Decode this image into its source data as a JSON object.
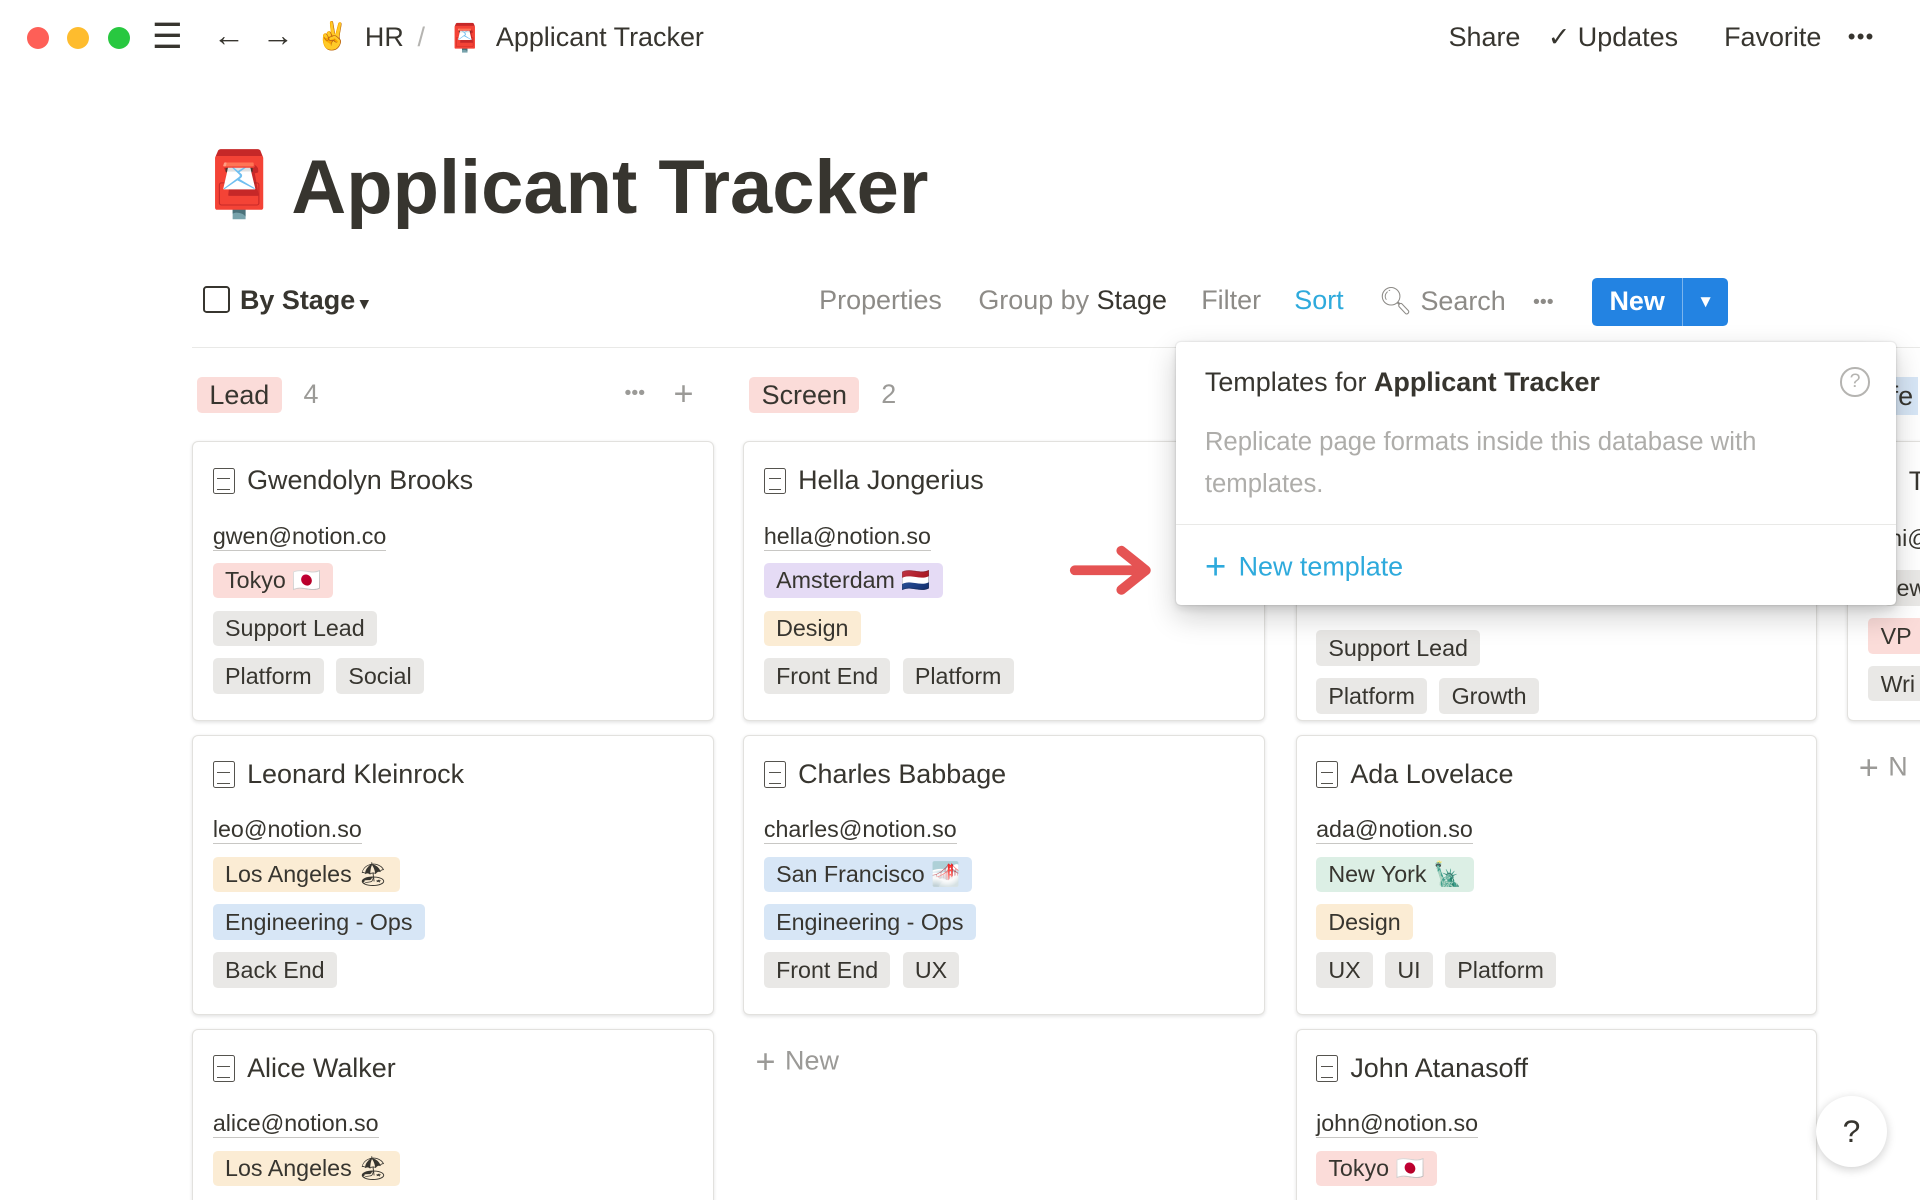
{
  "topbar": {
    "breadcrumb_workspace": "HR",
    "breadcrumb_sep": "/",
    "breadcrumb_page": "Applicant Tracker",
    "share": "Share",
    "updates": "Updates",
    "favorite": "Favorite",
    "more": "•••"
  },
  "page": {
    "emoji": "📮",
    "title": "Applicant Tracker"
  },
  "toolbar": {
    "view": "By Stage",
    "properties": "Properties",
    "group_by": "Group by",
    "group_value": "Stage",
    "filter": "Filter",
    "sort": "Sort",
    "search": "Search",
    "more": "•••",
    "new": "New"
  },
  "columns": [
    {
      "label": "Lead",
      "count": "4",
      "cards": [
        {
          "name": "Gwendolyn Brooks",
          "email": "gwen@notion.co",
          "location": "Tokyo 🇯🇵",
          "location_color": "red",
          "role": "Support Lead",
          "role_color": "gray",
          "tags": [
            "Platform",
            "Social"
          ]
        },
        {
          "name": "Leonard Kleinrock",
          "email": "leo@notion.so",
          "location": "Los Angeles 🏖",
          "location_color": "orange",
          "role": "Engineering - Ops",
          "role_color": "blue",
          "tags": [
            "Back End"
          ]
        },
        {
          "name": "Alice Walker",
          "email": "alice@notion.so",
          "location": "Los Angeles 🏖",
          "location_color": "orange"
        }
      ]
    },
    {
      "label": "Screen",
      "count": "2",
      "cards": [
        {
          "name": "Hella Jongerius",
          "email": "hella@notion.so",
          "location": "Amsterdam 🇳🇱",
          "location_color": "purple",
          "role": "Design",
          "role_color": "orange",
          "tags": [
            "Front End",
            "Platform"
          ]
        },
        {
          "name": "Charles Babbage",
          "email": "charles@notion.so",
          "location": "San Francisco 🌁",
          "location_color": "blue",
          "role": "Engineering - Ops",
          "role_color": "blue",
          "tags": [
            "Front End",
            "UX"
          ]
        }
      ],
      "new_label": "New"
    },
    {
      "cards": [
        {
          "role": "Support Lead",
          "role_color": "gray",
          "tags": [
            "Platform",
            "Growth"
          ]
        },
        {
          "name": "Ada Lovelace",
          "email": "ada@notion.so",
          "location": "New York 🗽",
          "location_color": "green",
          "role": "Design",
          "role_color": "orange",
          "tags": [
            "UX",
            "UI",
            "Platform"
          ]
        },
        {
          "name": "John Atanasoff",
          "email": "john@notion.so",
          "location": "Tokyo 🇯🇵",
          "location_color": "red"
        }
      ]
    },
    {
      "header_fragment": "fe",
      "fragments": [
        "T",
        "ni@",
        "ew",
        "VP",
        "Wri"
      ],
      "new_label": "N"
    }
  ],
  "popup": {
    "title_prefix": "Templates for",
    "title_bold": "Applicant Tracker",
    "description": "Replicate page formats inside this database with templates.",
    "new_template": "New template"
  },
  "help": "?",
  "colors": {
    "accent": "#2eaadc",
    "new_button": "#2383e2",
    "arrow": "#e55353"
  }
}
